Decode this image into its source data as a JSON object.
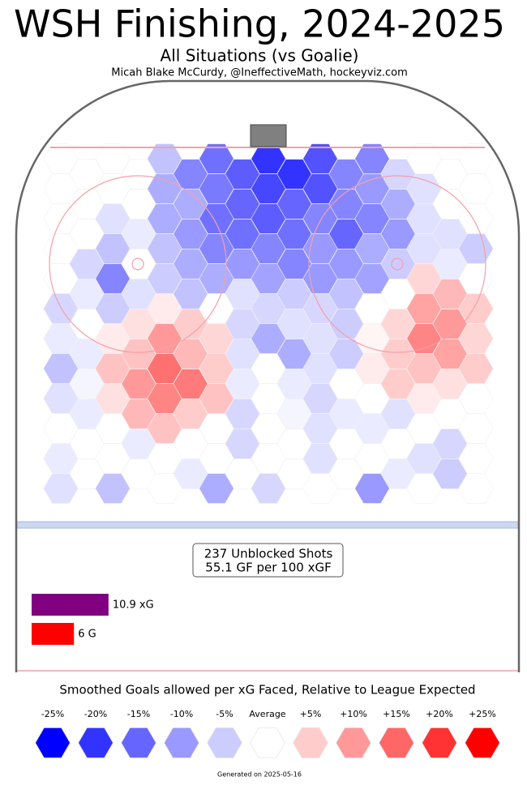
{
  "title": "WSH Finishing, 2024-2025",
  "subtitle": "All Situations (vs Goalie)",
  "credit": "Micah Blake McCurdy, @IneffectiveMath, hockeyviz.com",
  "summary": {
    "shots": "237 Unblocked Shots",
    "rate": "55.1 GF per 100 xGF"
  },
  "footer": "Generated on 2025-05-16",
  "chart_data": [
    {
      "type": "hexmap",
      "clim": [
        -25,
        25
      ],
      "colors": {
        "low": "#0000ff",
        "mid": "#ffffff",
        "high": "#ff0000"
      },
      "values": [
        [
          0,
          0,
          0,
          0,
          -6,
          -12,
          -14,
          -16,
          -20,
          -20,
          -17,
          -12,
          -12,
          -4,
          0,
          0,
          0
        ],
        [
          0,
          0,
          0,
          0,
          -8,
          -8,
          -13,
          -15,
          -18,
          -15,
          -17,
          -12,
          -10,
          -8,
          -3,
          0,
          0
        ],
        [
          0,
          0,
          -3,
          -2,
          -8,
          -10,
          -14,
          -14,
          -16,
          -14,
          -12,
          -15,
          -12,
          -10,
          -3,
          -3,
          0
        ],
        [
          0,
          -4,
          -6,
          0,
          -6,
          -8,
          -12,
          -10,
          -12,
          -12,
          -10,
          -10,
          -8,
          -5,
          -3,
          -2,
          -5
        ],
        [
          0,
          -2,
          -12,
          -3,
          -5,
          -6,
          -8,
          -3,
          -9,
          -5,
          -10,
          -6,
          -9,
          0,
          4,
          7,
          0
        ],
        [
          -4,
          0,
          -5,
          3,
          2,
          5,
          0,
          -4,
          -4,
          -3,
          -4,
          -5,
          0,
          4,
          9,
          10,
          5
        ],
        [
          -2,
          -2,
          2,
          6,
          10,
          7,
          4,
          -3,
          -8,
          -8,
          -3,
          -5,
          1,
          5,
          12,
          9,
          4
        ],
        [
          -6,
          -1,
          6,
          10,
          14,
          13,
          5,
          -2,
          0,
          -2,
          -3,
          0,
          2,
          5,
          6,
          3,
          5
        ],
        [
          -3,
          -2,
          3,
          7,
          12,
          5,
          6,
          -4,
          0,
          -1,
          -4,
          -2,
          0,
          -3,
          2,
          0,
          0
        ],
        [
          0,
          0,
          0,
          -2,
          6,
          0,
          0,
          -4,
          0,
          0,
          -3,
          0,
          -2,
          0,
          0,
          -4,
          0
        ],
        [
          -2,
          0,
          0,
          0,
          0,
          -2,
          0,
          0,
          0,
          0,
          -3,
          0,
          0,
          -2,
          -3,
          -5,
          0
        ],
        [
          -3,
          null,
          -6,
          null,
          0,
          null,
          -8,
          null,
          -4,
          null,
          0,
          null,
          -10,
          null,
          0,
          null,
          0
        ]
      ],
      "legend_title": "Smoothed Goals allowed per xG Faced, Relative to League Expected",
      "legend_ticks": [
        {
          "value": -25,
          "label": "-25%"
        },
        {
          "value": -20,
          "label": "-20%"
        },
        {
          "value": -15,
          "label": "-15%"
        },
        {
          "value": -10,
          "label": "-10%"
        },
        {
          "value": -5,
          "label": "-5%"
        },
        {
          "value": 0,
          "label": "Average"
        },
        {
          "value": 5,
          "label": "+5%"
        },
        {
          "value": 10,
          "label": "+10%"
        },
        {
          "value": 15,
          "label": "+15%"
        },
        {
          "value": 20,
          "label": "+20%"
        },
        {
          "value": 25,
          "label": "+25%"
        }
      ]
    },
    {
      "type": "bar",
      "values": [
        10.9,
        6
      ],
      "value_labels": [
        "10.9 xG",
        "6 G"
      ],
      "colors": [
        "#800080",
        "#ff0000"
      ]
    }
  ]
}
